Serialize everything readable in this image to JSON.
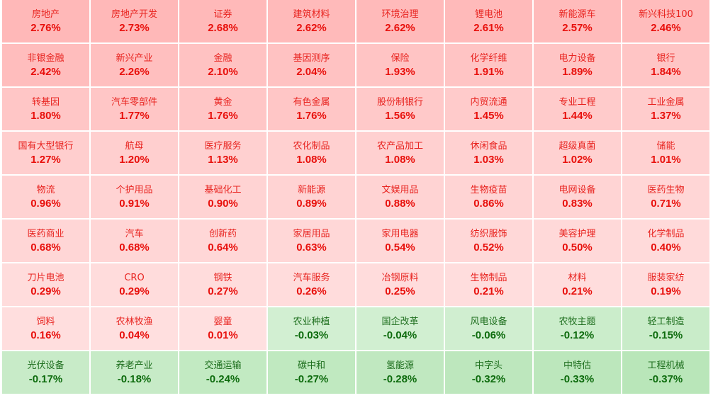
{
  "colors": {
    "up_text": "#e8100c",
    "down_text": "#0d6b0d",
    "up_bg_strong": "#ffb8b8",
    "up_bg_weak": "#ffe0e0",
    "down_bg_weak": "#d4f0d4",
    "down_bg_strong": "#b9e6b9"
  },
  "sectors": [
    {
      "name": "房地产",
      "change": "2.76%",
      "pct": 2.76
    },
    {
      "name": "房地产开发",
      "change": "2.73%",
      "pct": 2.73
    },
    {
      "name": "证券",
      "change": "2.68%",
      "pct": 2.68
    },
    {
      "name": "建筑材料",
      "change": "2.62%",
      "pct": 2.62
    },
    {
      "name": "环境治理",
      "change": "2.62%",
      "pct": 2.62
    },
    {
      "name": "锂电池",
      "change": "2.61%",
      "pct": 2.61
    },
    {
      "name": "新能源车",
      "change": "2.57%",
      "pct": 2.57
    },
    {
      "name": "新兴科技100",
      "change": "2.46%",
      "pct": 2.46
    },
    {
      "name": "非银金融",
      "change": "2.42%",
      "pct": 2.42
    },
    {
      "name": "新兴产业",
      "change": "2.26%",
      "pct": 2.26
    },
    {
      "name": "金融",
      "change": "2.10%",
      "pct": 2.1
    },
    {
      "name": "基因测序",
      "change": "2.04%",
      "pct": 2.04
    },
    {
      "name": "保险",
      "change": "1.93%",
      "pct": 1.93
    },
    {
      "name": "化学纤维",
      "change": "1.91%",
      "pct": 1.91
    },
    {
      "name": "电力设备",
      "change": "1.89%",
      "pct": 1.89
    },
    {
      "name": "银行",
      "change": "1.84%",
      "pct": 1.84
    },
    {
      "name": "转基因",
      "change": "1.80%",
      "pct": 1.8
    },
    {
      "name": "汽车零部件",
      "change": "1.77%",
      "pct": 1.77
    },
    {
      "name": "黄金",
      "change": "1.76%",
      "pct": 1.76
    },
    {
      "name": "有色金属",
      "change": "1.76%",
      "pct": 1.76
    },
    {
      "name": "股份制银行",
      "change": "1.56%",
      "pct": 1.56
    },
    {
      "name": "内贸流通",
      "change": "1.45%",
      "pct": 1.45
    },
    {
      "name": "专业工程",
      "change": "1.44%",
      "pct": 1.44
    },
    {
      "name": "工业金属",
      "change": "1.37%",
      "pct": 1.37
    },
    {
      "name": "国有大型银行",
      "change": "1.27%",
      "pct": 1.27
    },
    {
      "name": "航母",
      "change": "1.20%",
      "pct": 1.2
    },
    {
      "name": "医疗服务",
      "change": "1.13%",
      "pct": 1.13
    },
    {
      "name": "农化制品",
      "change": "1.08%",
      "pct": 1.08
    },
    {
      "name": "农产品加工",
      "change": "1.08%",
      "pct": 1.08
    },
    {
      "name": "休闲食品",
      "change": "1.03%",
      "pct": 1.03
    },
    {
      "name": "超级真菌",
      "change": "1.02%",
      "pct": 1.02
    },
    {
      "name": "储能",
      "change": "1.01%",
      "pct": 1.01
    },
    {
      "name": "物流",
      "change": "0.96%",
      "pct": 0.96
    },
    {
      "name": "个护用品",
      "change": "0.91%",
      "pct": 0.91
    },
    {
      "name": "基础化工",
      "change": "0.90%",
      "pct": 0.9
    },
    {
      "name": "新能源",
      "change": "0.89%",
      "pct": 0.89
    },
    {
      "name": "文娱用品",
      "change": "0.88%",
      "pct": 0.88
    },
    {
      "name": "生物疫苗",
      "change": "0.86%",
      "pct": 0.86
    },
    {
      "name": "电网设备",
      "change": "0.83%",
      "pct": 0.83
    },
    {
      "name": "医药生物",
      "change": "0.71%",
      "pct": 0.71
    },
    {
      "name": "医药商业",
      "change": "0.68%",
      "pct": 0.68
    },
    {
      "name": "汽车",
      "change": "0.68%",
      "pct": 0.68
    },
    {
      "name": "创新药",
      "change": "0.64%",
      "pct": 0.64
    },
    {
      "name": "家居用品",
      "change": "0.63%",
      "pct": 0.63
    },
    {
      "name": "家用电器",
      "change": "0.54%",
      "pct": 0.54
    },
    {
      "name": "纺织服饰",
      "change": "0.52%",
      "pct": 0.52
    },
    {
      "name": "美容护理",
      "change": "0.50%",
      "pct": 0.5
    },
    {
      "name": "化学制品",
      "change": "0.40%",
      "pct": 0.4
    },
    {
      "name": "刀片电池",
      "change": "0.29%",
      "pct": 0.29
    },
    {
      "name": "CRO",
      "change": "0.29%",
      "pct": 0.29
    },
    {
      "name": "钢铁",
      "change": "0.27%",
      "pct": 0.27
    },
    {
      "name": "汽车服务",
      "change": "0.26%",
      "pct": 0.26
    },
    {
      "name": "冶钢原料",
      "change": "0.25%",
      "pct": 0.25
    },
    {
      "name": "生物制品",
      "change": "0.21%",
      "pct": 0.21
    },
    {
      "name": "材料",
      "change": "0.21%",
      "pct": 0.21
    },
    {
      "name": "服装家纺",
      "change": "0.19%",
      "pct": 0.19
    },
    {
      "name": "饲料",
      "change": "0.16%",
      "pct": 0.16
    },
    {
      "name": "农林牧渔",
      "change": "0.04%",
      "pct": 0.04
    },
    {
      "name": "婴童",
      "change": "0.01%",
      "pct": 0.01
    },
    {
      "name": "农业种植",
      "change": "-0.03%",
      "pct": -0.03
    },
    {
      "name": "国企改革",
      "change": "-0.04%",
      "pct": -0.04
    },
    {
      "name": "风电设备",
      "change": "-0.06%",
      "pct": -0.06
    },
    {
      "name": "农牧主题",
      "change": "-0.12%",
      "pct": -0.12
    },
    {
      "name": "轻工制造",
      "change": "-0.15%",
      "pct": -0.15
    },
    {
      "name": "光伏设备",
      "change": "-0.17%",
      "pct": -0.17
    },
    {
      "name": "养老产业",
      "change": "-0.18%",
      "pct": -0.18
    },
    {
      "name": "交通运输",
      "change": "-0.24%",
      "pct": -0.24
    },
    {
      "name": "碳中和",
      "change": "-0.27%",
      "pct": -0.27
    },
    {
      "name": "氢能源",
      "change": "-0.28%",
      "pct": -0.28
    },
    {
      "name": "中字头",
      "change": "-0.32%",
      "pct": -0.32
    },
    {
      "name": "中特估",
      "change": "-0.33%",
      "pct": -0.33
    },
    {
      "name": "工程机械",
      "change": "-0.37%",
      "pct": -0.37
    }
  ]
}
